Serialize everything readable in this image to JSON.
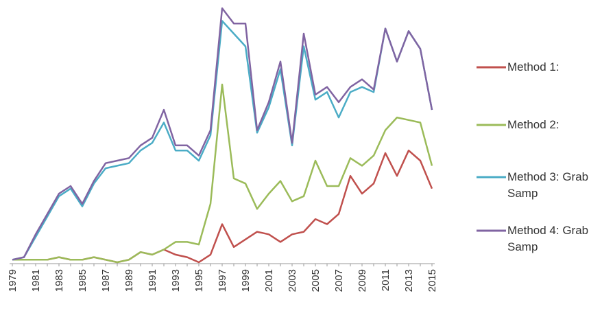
{
  "chart_data": {
    "type": "line",
    "categories": [
      "1979",
      null,
      "1981",
      null,
      "1983",
      null,
      "1985",
      null,
      "1987",
      null,
      "1989",
      null,
      "1991",
      null,
      "1993",
      null,
      "1995",
      null,
      "1997",
      null,
      "1999",
      null,
      "2001",
      null,
      "2003",
      null,
      "2005",
      null,
      "2007",
      null,
      "2009",
      null,
      "2011",
      null,
      "2013",
      null,
      "2015"
    ],
    "ylim": [
      0,
      100
    ],
    "series": [
      {
        "name": "Method 1:",
        "color": "#c0504d",
        "values": [
          1,
          1,
          1,
          1,
          2,
          1,
          1,
          2,
          1,
          0,
          1,
          4,
          3,
          5,
          3,
          2,
          0,
          3,
          15,
          6,
          9,
          12,
          11,
          8,
          11,
          12,
          17,
          15,
          19,
          34,
          27,
          31,
          43,
          34,
          44,
          40,
          29
        ]
      },
      {
        "name": "Method 2:",
        "color": "#9bbb59",
        "values": [
          1,
          1,
          1,
          1,
          2,
          1,
          1,
          2,
          1,
          0,
          1,
          4,
          3,
          5,
          8,
          8,
          7,
          23,
          70,
          33,
          31,
          21,
          27,
          32,
          24,
          26,
          40,
          30,
          30,
          41,
          38,
          42,
          52,
          57,
          56,
          55,
          38
        ]
      },
      {
        "name": "Method 3: Grab Samp",
        "color": "#4bacc6",
        "values": [
          1,
          2,
          10,
          18,
          26,
          29,
          22,
          31,
          37,
          38,
          39,
          44,
          47,
          55,
          44,
          44,
          40,
          50,
          95,
          90,
          85,
          51,
          61,
          76,
          46,
          85,
          64,
          67,
          57,
          67,
          69,
          67,
          92,
          79,
          91,
          84,
          60
        ]
      },
      {
        "name": "Method 4: Grab Samp",
        "color": "#8064a2",
        "values": [
          1,
          2,
          11,
          19,
          27,
          30,
          23,
          32,
          39,
          40,
          41,
          46,
          49,
          60,
          46,
          46,
          42,
          52,
          100,
          94,
          94,
          52,
          63,
          79,
          47,
          90,
          66,
          69,
          63,
          69,
          72,
          68,
          92,
          79,
          91,
          84,
          60
        ]
      }
    ]
  }
}
